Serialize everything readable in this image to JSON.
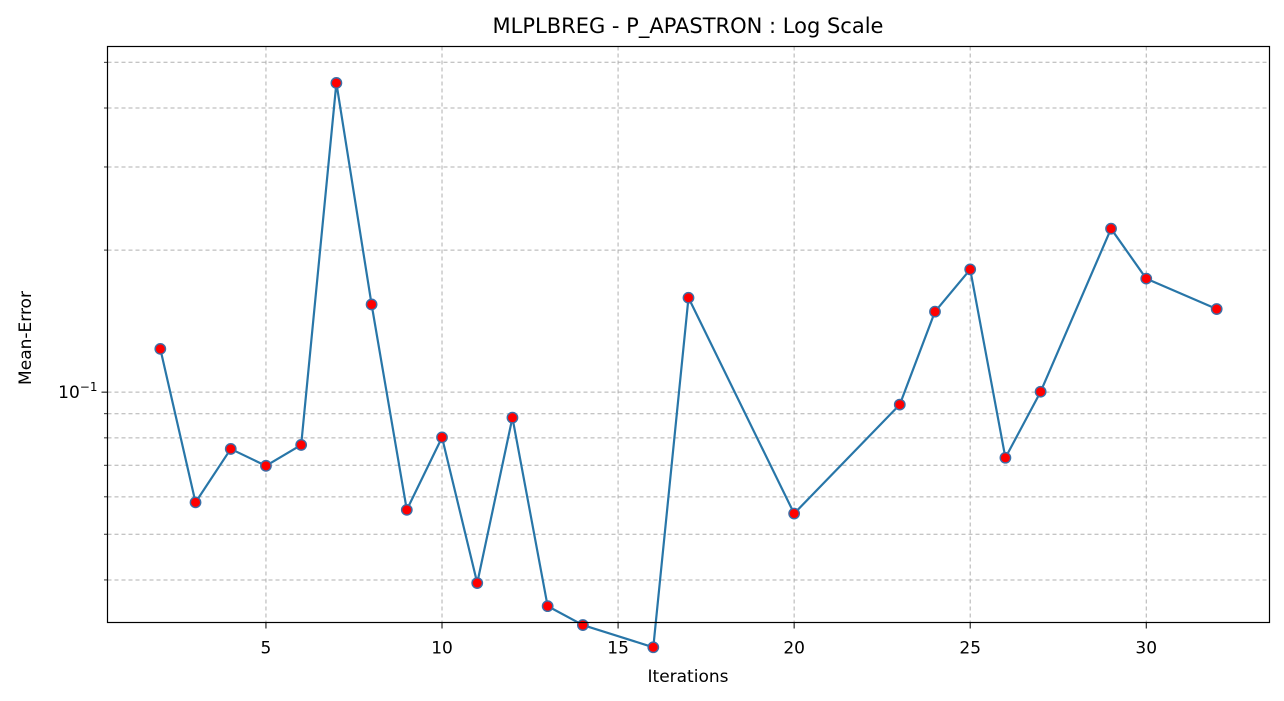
{
  "chart_data": {
    "type": "line",
    "title": "MLPLBREG - P_APASTRON : Log Scale",
    "xlabel": "Iterations",
    "ylabel": "Mean-Error",
    "yscale": "log",
    "xlim": [
      0.5,
      33.5
    ],
    "ylim": [
      0.0325,
      0.54
    ],
    "grid": true,
    "x_ticks": [
      5,
      10,
      15,
      20,
      25,
      30
    ],
    "y_major_ticks": [
      0.1
    ],
    "y_major_tick_labels": [
      "10^-1"
    ],
    "y_minor_ticks": [
      0.04,
      0.05,
      0.06,
      0.07,
      0.08,
      0.09,
      0.2,
      0.3,
      0.4,
      0.5
    ],
    "colors": {
      "line": "#2876a8",
      "marker_face": "#ff0000",
      "marker_edge": "#3b6fa8",
      "grid": "#b0b0b0"
    },
    "series": [
      {
        "x": [
          2,
          3,
          4,
          5,
          6,
          7,
          8,
          9,
          10,
          11,
          12,
          13,
          14,
          16,
          17,
          20,
          23,
          24,
          25,
          26,
          27,
          29,
          30,
          32
        ],
        "values": [
          0.1235,
          0.0584,
          0.0758,
          0.0698,
          0.0773,
          0.452,
          0.1534,
          0.0563,
          0.0802,
          0.0394,
          0.0883,
          0.0352,
          0.0321,
          0.0288,
          0.1585,
          0.0553,
          0.0941,
          0.1481,
          0.182,
          0.0726,
          0.1002,
          0.222,
          0.174,
          0.15
        ]
      }
    ]
  }
}
